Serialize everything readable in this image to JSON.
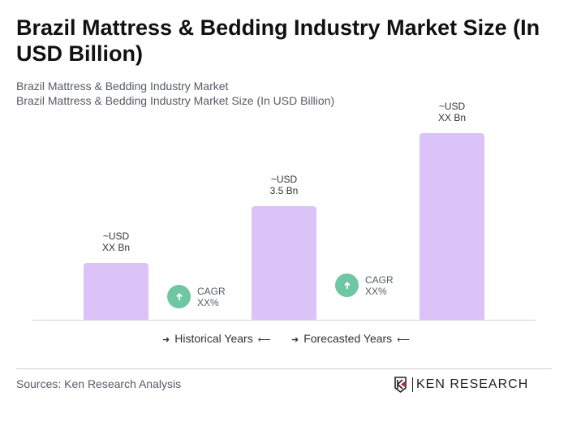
{
  "title": "Brazil Mattress & Bedding Industry Market Size (In USD Billion)",
  "subtitle1": "Brazil Mattress & Bedding Industry Market",
  "subtitle2": "Brazil Mattress & Bedding Industry Market Size (In USD Billion)",
  "chart_data": {
    "type": "bar",
    "categories": [
      "",
      "",
      ""
    ],
    "values": [
      1.75,
      3.5,
      5.75
    ],
    "data_labels": [
      [
        "~USD",
        "XX Bn"
      ],
      [
        "~USD",
        "3.5 Bn"
      ],
      [
        "~USD",
        "XX Bn"
      ]
    ],
    "bar_color": "#dcc3f7",
    "grid": false
  },
  "cagr": [
    {
      "label": "CAGR",
      "value": "XX%",
      "icon": "arrow-up-icon"
    },
    {
      "label": "CAGR",
      "value": "XX%",
      "icon": "arrow-up-icon"
    }
  ],
  "legend": {
    "historical": "Historical Years",
    "forecasted": "Forecasted Years"
  },
  "source": "Sources: Ken Research Analysis",
  "logo_text": "KEN RESEARCH",
  "colors": {
    "cagr": "#6ec6a2",
    "bar": "#dcc3f7"
  }
}
